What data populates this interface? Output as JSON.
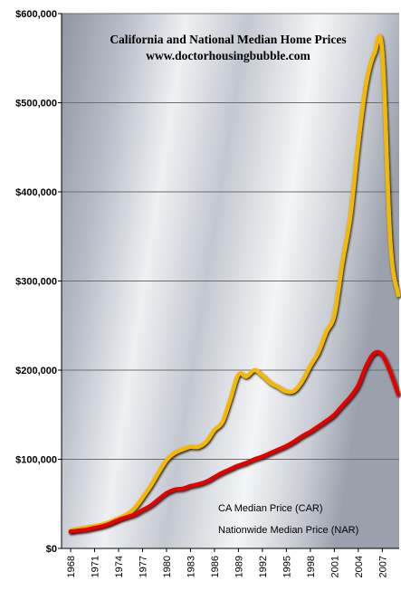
{
  "chart_data": {
    "type": "line",
    "title": "California and National Median Home Prices",
    "subtitle": "www.doctorhousingbubble.com",
    "xlabel": "",
    "ylabel": "",
    "ylim": [
      0,
      600000
    ],
    "xlim": [
      1968,
      2009
    ],
    "y_ticks": [
      0,
      100000,
      200000,
      300000,
      400000,
      500000,
      600000
    ],
    "y_tick_labels": [
      "$0",
      "$100,000",
      "$200,000",
      "$300,000",
      "$400,000",
      "$500,000",
      "$600,000"
    ],
    "x_tick_labels": [
      "1968",
      "1971",
      "1974",
      "1977",
      "1980",
      "1983",
      "1986",
      "1989",
      "1992",
      "1995",
      "1998",
      "2001",
      "2004",
      "2007"
    ],
    "grid": true,
    "legend_position": "bottom-right",
    "series": [
      {
        "name": "CA Median Price (CAR)",
        "color": "#F5B800",
        "x": [
          1968,
          1969,
          1970,
          1971,
          1972,
          1973,
          1974,
          1975,
          1976,
          1977,
          1978,
          1979,
          1980,
          1981,
          1982,
          1983,
          1984,
          1985,
          1986,
          1987,
          1988,
          1989,
          1990,
          1991,
          1992,
          1993,
          1994,
          1995,
          1996,
          1997,
          1998,
          1999,
          2000,
          2001,
          2002,
          2003,
          2004,
          2005,
          2006,
          2007,
          2008,
          2009
        ],
        "y": [
          20000,
          22000,
          23500,
          25000,
          27000,
          30000,
          34000,
          38000,
          45000,
          57000,
          70000,
          85000,
          99000,
          107000,
          111000,
          114000,
          114000,
          120000,
          133000,
          142000,
          168000,
          195000,
          193000,
          200000,
          194000,
          186000,
          181000,
          176000,
          177000,
          188000,
          205000,
          220000,
          243000,
          262000,
          320000,
          372000,
          455000,
          522000,
          555000,
          557000,
          345000,
          284000
        ]
      },
      {
        "name": "Nationwide  Median Price (NAR)",
        "color": "#E50000",
        "x": [
          1968,
          1969,
          1970,
          1971,
          1972,
          1973,
          1974,
          1975,
          1976,
          1977,
          1978,
          1979,
          1980,
          1981,
          1982,
          1983,
          1984,
          1985,
          1986,
          1987,
          1988,
          1989,
          1990,
          1991,
          1992,
          1993,
          1994,
          1995,
          1996,
          1997,
          1998,
          1999,
          2000,
          2001,
          2002,
          2003,
          2004,
          2005,
          2006,
          2007,
          2008,
          2009
        ],
        "y": [
          19000,
          20000,
          21000,
          23000,
          25000,
          28000,
          32000,
          35000,
          38000,
          43000,
          48000,
          55000,
          62000,
          66000,
          67000,
          70000,
          72000,
          75000,
          80000,
          85000,
          89000,
          93000,
          96000,
          100000,
          103000,
          107000,
          111000,
          115000,
          120000,
          126000,
          131000,
          137000,
          143000,
          150000,
          160000,
          170000,
          183000,
          205000,
          219000,
          217000,
          198000,
          173000
        ]
      }
    ]
  }
}
